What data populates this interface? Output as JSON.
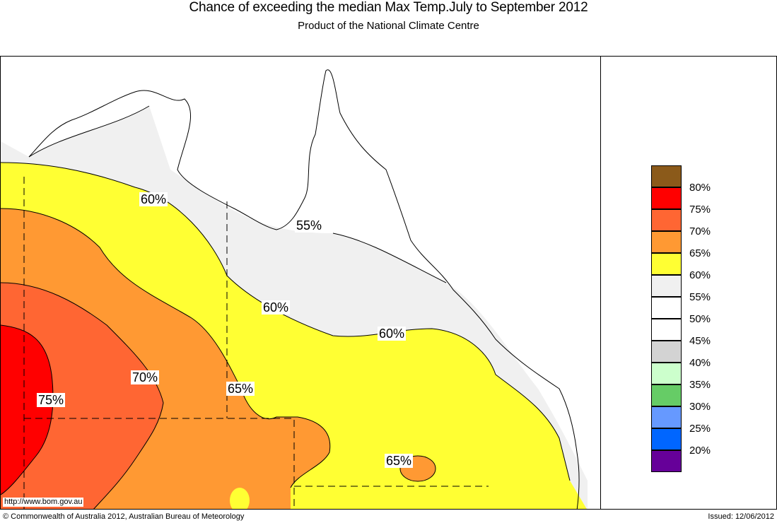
{
  "header": {
    "title": "Chance of exceeding the median Max Temp.July to September 2012",
    "subtitle": "Product of the National Climate Centre"
  },
  "legend": {
    "items": [
      {
        "label": "80%",
        "color": "#8b5a1a"
      },
      {
        "label": "75%",
        "color": "#ff0000"
      },
      {
        "label": "70%",
        "color": "#ff6633"
      },
      {
        "label": "65%",
        "color": "#ff9933"
      },
      {
        "label": "60%",
        "color": "#ffff33"
      },
      {
        "label": "55%",
        "color": "#f0f0f0"
      },
      {
        "label": "50%",
        "color": "#ffffff"
      },
      {
        "label": "45%",
        "color": "#ffffff"
      },
      {
        "label": "40%",
        "color": "#d3d3d3"
      },
      {
        "label": "35%",
        "color": "#ccffcc"
      },
      {
        "label": "30%",
        "color": "#66cc66"
      },
      {
        "label": "25%",
        "color": "#6699ff"
      },
      {
        "label": "20%",
        "color": "#0066ff"
      },
      {
        "label": "",
        "color": "#660099"
      }
    ]
  },
  "map": {
    "contour_labels": [
      "60%",
      "55%",
      "60%",
      "60%",
      "70%",
      "65%",
      "75%",
      "65%"
    ]
  },
  "footer": {
    "url": "http://www.bom.gov.au",
    "copyright": "© Commonwealth of Australia 2012, Australian Bureau of Meteorology",
    "issued": "Issued: 12/06/2012"
  }
}
